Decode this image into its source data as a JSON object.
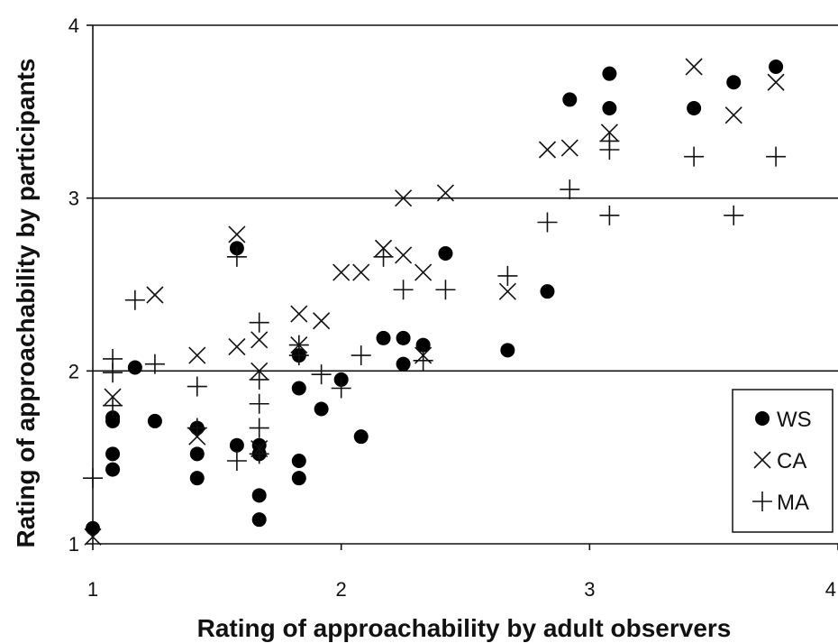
{
  "chart_data": {
    "type": "scatter",
    "xlabel": "Rating of approachability by adult observers",
    "ylabel": "Rating of approachability by participants",
    "xlim": [
      1,
      4
    ],
    "ylim": [
      1,
      4
    ],
    "xticks": [
      "1",
      "2",
      "3",
      "4"
    ],
    "yticks": [
      "1",
      "2",
      "3",
      "4"
    ],
    "grid": "horizontal",
    "legend_position": "bottom-right",
    "series": [
      {
        "name": "WS",
        "marker": "filled-circle",
        "points": [
          [
            1.0,
            1.09
          ],
          [
            1.08,
            1.73
          ],
          [
            1.08,
            1.71
          ],
          [
            1.08,
            1.52
          ],
          [
            1.08,
            1.43
          ],
          [
            1.17,
            2.02
          ],
          [
            1.25,
            1.71
          ],
          [
            1.42,
            1.67
          ],
          [
            1.42,
            1.52
          ],
          [
            1.42,
            1.38
          ],
          [
            1.58,
            2.71
          ],
          [
            1.58,
            1.57
          ],
          [
            1.67,
            1.57
          ],
          [
            1.67,
            1.52
          ],
          [
            1.67,
            1.28
          ],
          [
            1.67,
            1.14
          ],
          [
            1.83,
            2.09
          ],
          [
            1.83,
            1.9
          ],
          [
            1.83,
            1.48
          ],
          [
            1.83,
            1.38
          ],
          [
            1.92,
            1.78
          ],
          [
            2.0,
            1.95
          ],
          [
            2.08,
            1.62
          ],
          [
            2.17,
            2.19
          ],
          [
            2.25,
            2.19
          ],
          [
            2.25,
            2.04
          ],
          [
            2.33,
            2.15
          ],
          [
            2.42,
            2.68
          ],
          [
            2.67,
            2.12
          ],
          [
            2.83,
            2.46
          ],
          [
            2.92,
            3.57
          ],
          [
            3.08,
            3.72
          ],
          [
            3.08,
            3.52
          ],
          [
            3.42,
            3.52
          ],
          [
            3.58,
            3.67
          ],
          [
            3.75,
            3.76
          ]
        ]
      },
      {
        "name": "CA",
        "marker": "x",
        "points": [
          [
            1.0,
            1.04
          ],
          [
            1.08,
            1.85
          ],
          [
            1.25,
            2.44
          ],
          [
            1.42,
            2.09
          ],
          [
            1.42,
            1.62
          ],
          [
            1.58,
            2.79
          ],
          [
            1.58,
            2.14
          ],
          [
            1.67,
            2.18
          ],
          [
            1.67,
            2.0
          ],
          [
            1.67,
            1.55
          ],
          [
            1.83,
            2.33
          ],
          [
            1.83,
            2.15
          ],
          [
            1.92,
            2.29
          ],
          [
            2.0,
            2.57
          ],
          [
            2.08,
            2.57
          ],
          [
            2.17,
            2.71
          ],
          [
            2.25,
            3.0
          ],
          [
            2.25,
            2.67
          ],
          [
            2.33,
            2.57
          ],
          [
            2.33,
            2.09
          ],
          [
            2.42,
            3.03
          ],
          [
            2.67,
            2.46
          ],
          [
            2.83,
            3.28
          ],
          [
            2.92,
            3.29
          ],
          [
            3.08,
            3.38
          ],
          [
            3.42,
            3.76
          ],
          [
            3.58,
            3.48
          ],
          [
            3.75,
            3.67
          ]
        ]
      },
      {
        "name": "MA",
        "marker": "plus",
        "points": [
          [
            1.0,
            1.38
          ],
          [
            1.08,
            2.07
          ],
          [
            1.08,
            1.99
          ],
          [
            1.08,
            1.8
          ],
          [
            1.17,
            2.41
          ],
          [
            1.25,
            2.04
          ],
          [
            1.42,
            1.91
          ],
          [
            1.42,
            1.67
          ],
          [
            1.58,
            2.66
          ],
          [
            1.58,
            1.48
          ],
          [
            1.67,
            2.28
          ],
          [
            1.67,
            1.95
          ],
          [
            1.67,
            1.81
          ],
          [
            1.67,
            1.67
          ],
          [
            1.67,
            1.52
          ],
          [
            1.83,
            2.15
          ],
          [
            1.83,
            2.09
          ],
          [
            1.92,
            1.98
          ],
          [
            2.0,
            1.9
          ],
          [
            2.08,
            2.09
          ],
          [
            2.17,
            2.66
          ],
          [
            2.25,
            2.47
          ],
          [
            2.33,
            2.06
          ],
          [
            2.42,
            2.47
          ],
          [
            2.67,
            2.55
          ],
          [
            2.83,
            2.86
          ],
          [
            2.92,
            3.05
          ],
          [
            3.08,
            3.33
          ],
          [
            3.08,
            3.28
          ],
          [
            3.08,
            2.9
          ],
          [
            3.42,
            3.24
          ],
          [
            3.58,
            2.9
          ],
          [
            3.75,
            3.24
          ]
        ]
      }
    ]
  }
}
